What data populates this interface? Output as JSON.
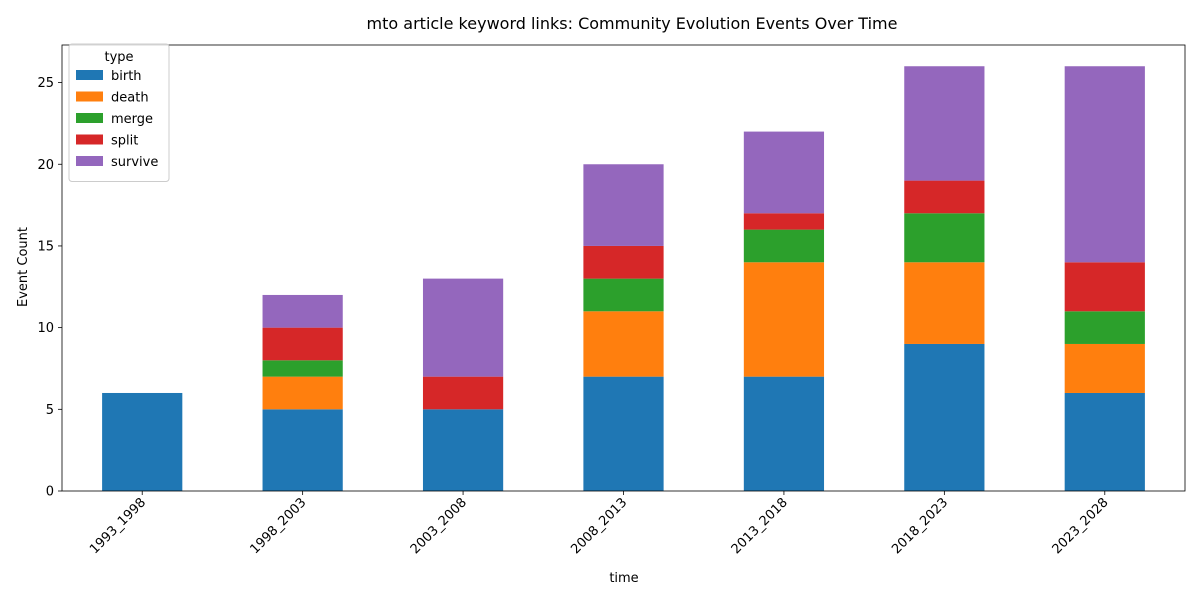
{
  "chart_data": {
    "type": "bar",
    "stacked": true,
    "title": "mto article keyword links: Community Evolution Events Over Time",
    "xlabel": "time",
    "ylabel": "Event Count",
    "ylim": [
      0,
      27.3
    ],
    "yticks": [
      0,
      5,
      10,
      15,
      20,
      25
    ],
    "categories": [
      "1993_1998",
      "1998_2003",
      "2003_2008",
      "2008_2013",
      "2013_2018",
      "2018_2023",
      "2023_2028"
    ],
    "legend": {
      "title": "type",
      "placement": "top-left"
    },
    "series": [
      {
        "name": "birth",
        "color": "#1f77b4",
        "values": [
          6,
          5,
          5,
          7,
          7,
          9,
          6
        ]
      },
      {
        "name": "death",
        "color": "#ff7f0e",
        "values": [
          0,
          2,
          0,
          4,
          7,
          5,
          3
        ]
      },
      {
        "name": "merge",
        "color": "#2ca02c",
        "values": [
          0,
          1,
          0,
          2,
          2,
          3,
          2
        ]
      },
      {
        "name": "split",
        "color": "#d62728",
        "values": [
          0,
          2,
          2,
          2,
          1,
          2,
          3
        ]
      },
      {
        "name": "survive",
        "color": "#9467bd",
        "values": [
          0,
          2,
          6,
          5,
          5,
          7,
          12
        ]
      }
    ]
  }
}
